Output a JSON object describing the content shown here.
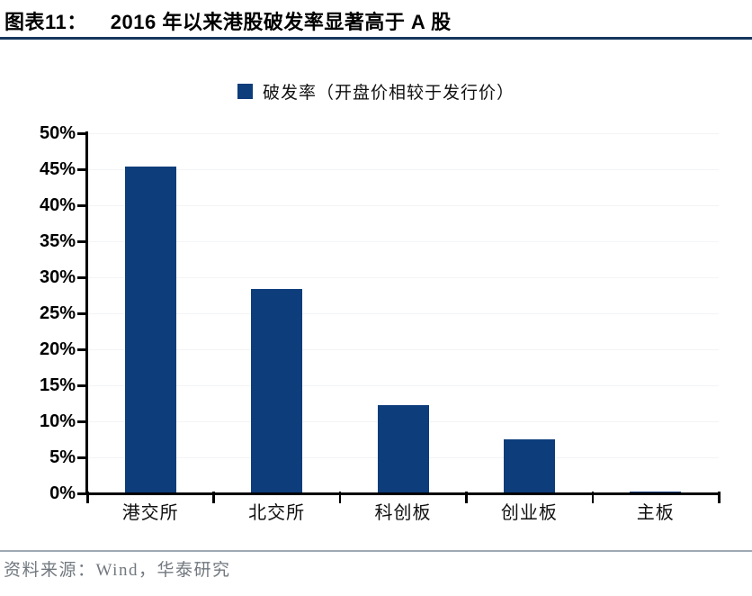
{
  "header": {
    "figure_label": "图表11：",
    "title": "2016 年以来港股破发率显著高于 A 股"
  },
  "legend": {
    "label": "破发率（开盘价相较于发行价）"
  },
  "chart_data": {
    "type": "bar",
    "title": "2016 年以来港股破发率显著高于 A 股",
    "categories": [
      "港交所",
      "北交所",
      "科创板",
      "创业板",
      "主板"
    ],
    "values": [
      45.4,
      28.4,
      12.2,
      7.5,
      0.3
    ],
    "unit": "%",
    "xlabel": "",
    "ylabel": "",
    "ylim": [
      0,
      50
    ],
    "ytick_step": 5,
    "ytick_labels": [
      "0%",
      "5%",
      "10%",
      "15%",
      "20%",
      "25%",
      "30%",
      "35%",
      "40%",
      "45%",
      "50%"
    ],
    "legend_entries": [
      "破发率（开盘价相较于发行价）"
    ],
    "legend_position": "top-center",
    "grid": "very-faint-horizontal",
    "bar_color": "#0d3d7b"
  },
  "footer": {
    "source": "资料来源：Wind，华泰研究"
  },
  "colors": {
    "bar": "#0d3d7b",
    "title_rule": "#16365d",
    "footer_rule": "#9fa9b4",
    "axis": "#000000",
    "source_text": "#72787f"
  }
}
